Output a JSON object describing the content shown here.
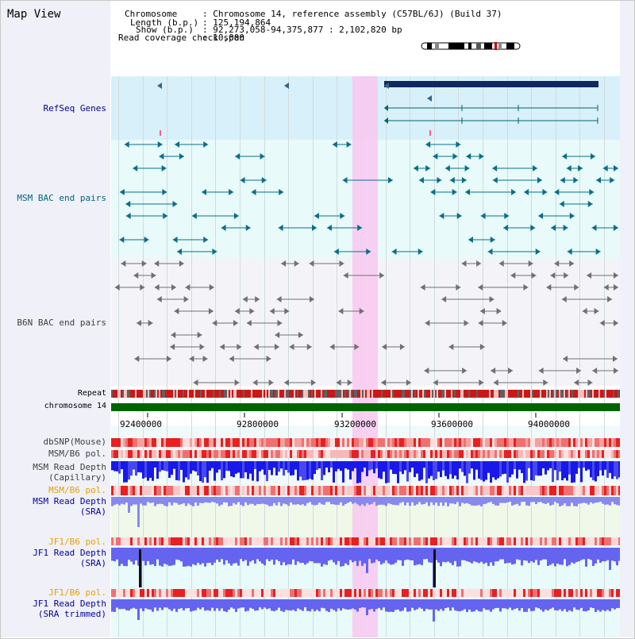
{
  "window": {
    "title": "Map View"
  },
  "header": {
    "chromosome_label": "Chromosome",
    "chromosome_value": ": Chromosome 14, reference assembly (C57BL/6J) (Build 37)",
    "length_label": "Length (b.p.)",
    "length_value": ": 125,194,864",
    "show_label": "Show (b.p.)",
    "show_value": ": 92,273,058-94,375,877 : 2,102,820 bp",
    "coverage_label": "Read coverage check span",
    "coverage_value": ": 10,000"
  },
  "tracks": {
    "refseq": "RefSeq Genes",
    "msm_bac": "MSM BAC end pairs",
    "b6n_bac": "B6N BAC end pairs",
    "repeat": "Repeat",
    "chromosome": "chromosome 14",
    "dbsnp": "dbSNP(Mouse)",
    "msm_b6_pol": "MSM/B6 pol.",
    "msm_depth_cap_1": "MSM Read Depth",
    "msm_depth_cap_2": "(Capillary)",
    "msm_b6_pol2": "MSM/B6 pol.",
    "msm_depth_sra_1": "MSM Read Depth",
    "msm_depth_sra_2": "(SRA)",
    "jf1_b6_pol": "JF1/B6 pol.",
    "jf1_depth_sra_1": "JF1 Read Depth",
    "jf1_depth_sra_2": "(SRA)",
    "jf1_b6_pol2": "JF1/B6 pol.",
    "jf1_depth_trim_1": "JF1 Read Depth",
    "jf1_depth_trim_2": "(SRA trimmed)"
  },
  "axis": {
    "ticks": [
      "92400000",
      "92800000",
      "93200000",
      "93600000",
      "94000000"
    ]
  },
  "colors": {
    "refseq_label": "#00008b",
    "msm_label": "#006680",
    "b6n_label": "#404040",
    "orange_label": "#e8a000",
    "blue_label": "#0000a0",
    "highlight": "#f8c8f0"
  }
}
